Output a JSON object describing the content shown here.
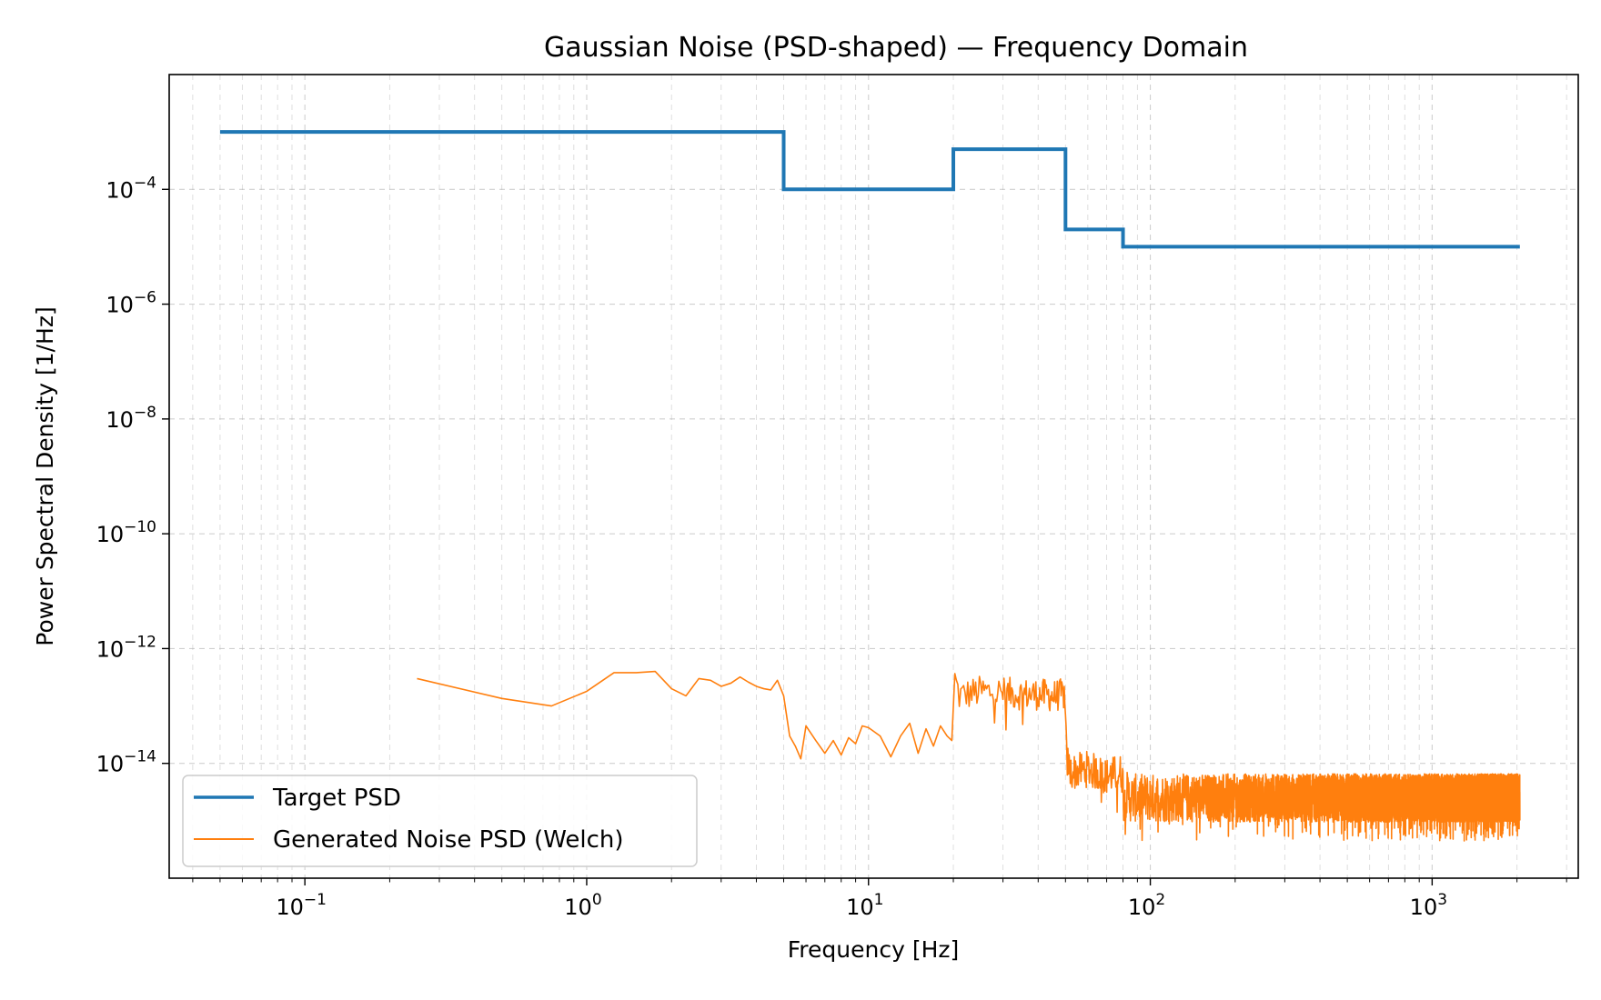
{
  "chart_data": {
    "type": "line",
    "title": "Gaussian Noise (PSD-shaped) — Frequency Domain",
    "xlabel": "Frequency [Hz]",
    "ylabel": "Power Spectral Density [1/Hz]",
    "xscale": "log",
    "yscale": "log",
    "xlim": [
      0.033,
      3300
    ],
    "ylim": [
      1e-16,
      0.01
    ],
    "grid": true,
    "legend_position": "bottom-left",
    "x_ticks": [
      {
        "value": 0.1,
        "base": "10",
        "exp": "−1"
      },
      {
        "value": 1,
        "base": "10",
        "exp": "0"
      },
      {
        "value": 10,
        "base": "10",
        "exp": "1"
      },
      {
        "value": 100,
        "base": "10",
        "exp": "2"
      },
      {
        "value": 1000,
        "base": "10",
        "exp": "3"
      }
    ],
    "y_ticks": [
      {
        "value": 0.0001,
        "base": "10",
        "exp": "−4"
      },
      {
        "value": 1e-06,
        "base": "10",
        "exp": "−6"
      },
      {
        "value": 1e-08,
        "base": "10",
        "exp": "−8"
      },
      {
        "value": 1e-10,
        "base": "10",
        "exp": "−10"
      },
      {
        "value": 1e-12,
        "base": "10",
        "exp": "−12"
      },
      {
        "value": 1e-14,
        "base": "10",
        "exp": "−14"
      }
    ],
    "series": [
      {
        "name": "Target PSD",
        "color": "#1f77b4",
        "style": "step",
        "x": [
          0.05,
          5,
          5,
          20,
          20,
          50,
          50,
          80,
          80,
          2048
        ],
        "y": [
          0.001,
          0.001,
          0.0001,
          0.0001,
          0.0005,
          0.0005,
          2e-05,
          2e-05,
          1e-05,
          1e-05
        ]
      },
      {
        "name": "Generated Noise PSD (Welch)",
        "color": "#ff7f0e",
        "style": "noisy",
        "anchors": {
          "x": [
            0.25,
            0.5,
            0.75,
            1.0,
            1.25,
            1.5,
            1.75,
            2.0,
            2.25,
            2.5,
            2.75,
            3.0,
            3.25,
            3.5,
            3.75,
            4.0,
            4.25,
            4.5,
            4.75,
            5.0,
            5.25,
            5.5,
            5.75,
            6.0,
            6.5,
            7.0,
            7.5,
            8.0,
            8.5,
            9.0,
            9.5,
            10.0,
            11.0,
            12.0,
            13.0,
            14.0,
            15.0,
            16.0,
            17.0,
            18.0,
            19.0,
            19.75,
            20.25,
            21.0,
            25.0,
            30.0,
            35.0,
            40.0,
            45.0,
            49.5,
            50.5,
            52.0,
            60.0,
            70.0,
            79.0,
            81.0,
            85.0,
            100.0,
            200.0,
            300.0,
            500.0,
            1000.0,
            2048.0
          ],
          "y": [
            3e-13,
            1.35e-13,
            1e-13,
            1.8e-13,
            3.8e-13,
            3.8e-13,
            4e-13,
            2e-13,
            1.5e-13,
            3e-13,
            2.8e-13,
            2.2e-13,
            2.5e-13,
            3.2e-13,
            2.6e-13,
            2.2e-13,
            2e-13,
            1.9e-13,
            2.8e-13,
            1.5e-13,
            3e-14,
            2e-14,
            1.2e-14,
            4.5e-14,
            2.5e-14,
            1.5e-14,
            2.5e-14,
            1.4e-14,
            2.8e-14,
            2.2e-14,
            4.5e-14,
            4.2e-14,
            3e-14,
            1.3e-14,
            3e-14,
            5e-14,
            1.5e-14,
            4e-14,
            2e-14,
            4.5e-14,
            3e-14,
            2.5e-14,
            3e-13,
            1.5e-13,
            1.8e-13,
            1.7e-13,
            1.6e-13,
            1.6e-13,
            1.5e-13,
            1.6e-13,
            1.2e-14,
            7e-15,
            8e-15,
            6e-15,
            7e-15,
            3e-15,
            2.5e-15,
            2.5e-15,
            2.5e-15,
            2.5e-15,
            2.5e-15,
            2.5e-15,
            2.5e-15
          ]
        }
      }
    ]
  }
}
